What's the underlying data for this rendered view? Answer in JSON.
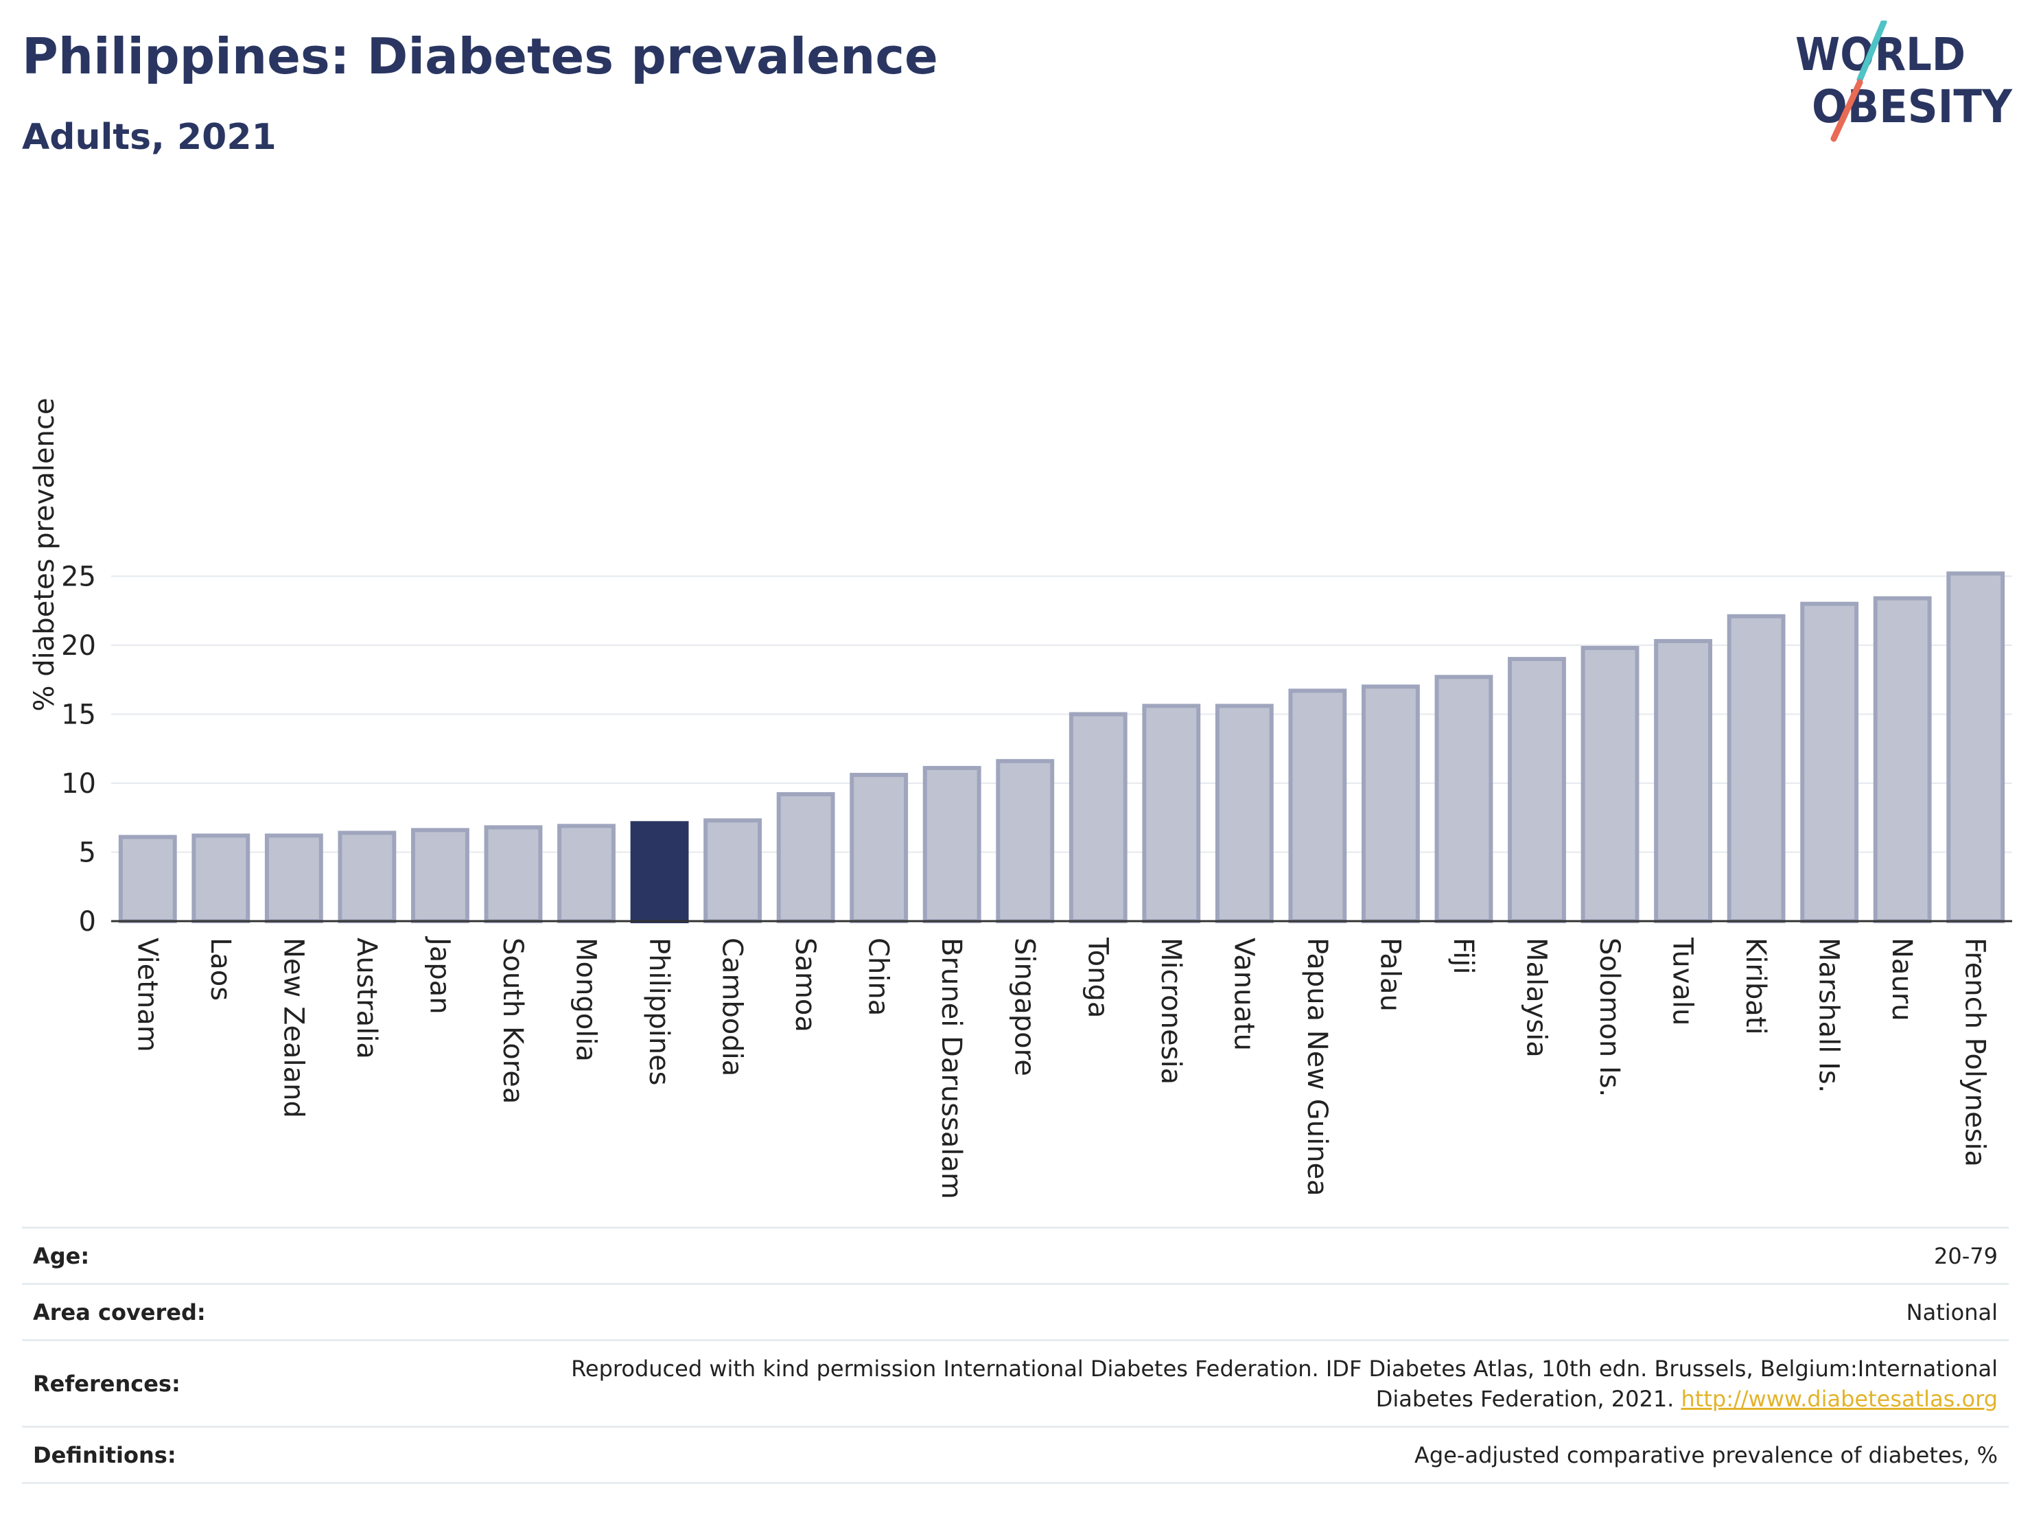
{
  "header": {
    "title": "Philippines: Diabetes prevalence",
    "subtitle": "Adults, 2021"
  },
  "logo": {
    "line1": "WORLD",
    "line2": "OBESITY",
    "accent_teal": "#4fc3c6",
    "accent_coral": "#e96a55"
  },
  "colors": {
    "bar": "#bfc3d1",
    "bar_stroke": "#9fa5bd",
    "bar_highlight": "#2a3661",
    "axis": "#333333",
    "grid": "#e6e9ee",
    "text": "#222222"
  },
  "chart_data": {
    "type": "bar",
    "title": "Philippines: Diabetes prevalence",
    "subtitle": "Adults, 2021",
    "ylabel": "% diabetes prevalence",
    "xlabel": "",
    "ylim": [
      0,
      26
    ],
    "yticks": [
      0,
      5,
      10,
      15,
      20,
      25
    ],
    "grid": true,
    "highlight": "Philippines",
    "categories": [
      "Vietnam",
      "Laos",
      "New Zealand",
      "Australia",
      "Japan",
      "South Korea",
      "Mongolia",
      "Philippines",
      "Cambodia",
      "Samoa",
      "China",
      "Brunei Darussalam",
      "Singapore",
      "Tonga",
      "Micronesia",
      "Vanuatu",
      "Papua New Guinea",
      "Palau",
      "Fiji",
      "Malaysia",
      "Solomon Is.",
      "Tuvalu",
      "Kiribati",
      "Marshall Is.",
      "Nauru",
      "French Polynesia"
    ],
    "values": [
      6.1,
      6.2,
      6.2,
      6.4,
      6.6,
      6.8,
      6.9,
      7.1,
      7.3,
      9.2,
      10.6,
      11.1,
      11.6,
      15.0,
      15.6,
      15.6,
      16.7,
      17.0,
      17.7,
      19.0,
      19.8,
      20.3,
      22.1,
      23.0,
      23.4,
      25.2
    ]
  },
  "meta": {
    "age_label": "Age:",
    "age_value": "20-79",
    "area_label": "Area covered:",
    "area_value": "National",
    "references_label": "References:",
    "references_line1": "Reproduced with kind permission International Diabetes Federation.  IDF Diabetes Atlas, 10th edn. Brussels, Belgium:International",
    "references_line2": "Diabetes Federation, 2021. ",
    "references_link": "http://www.diabetesatlas.org",
    "definitions_label": "Definitions:",
    "definitions_value": "Age-adjusted comparative prevalence of diabetes, %"
  }
}
